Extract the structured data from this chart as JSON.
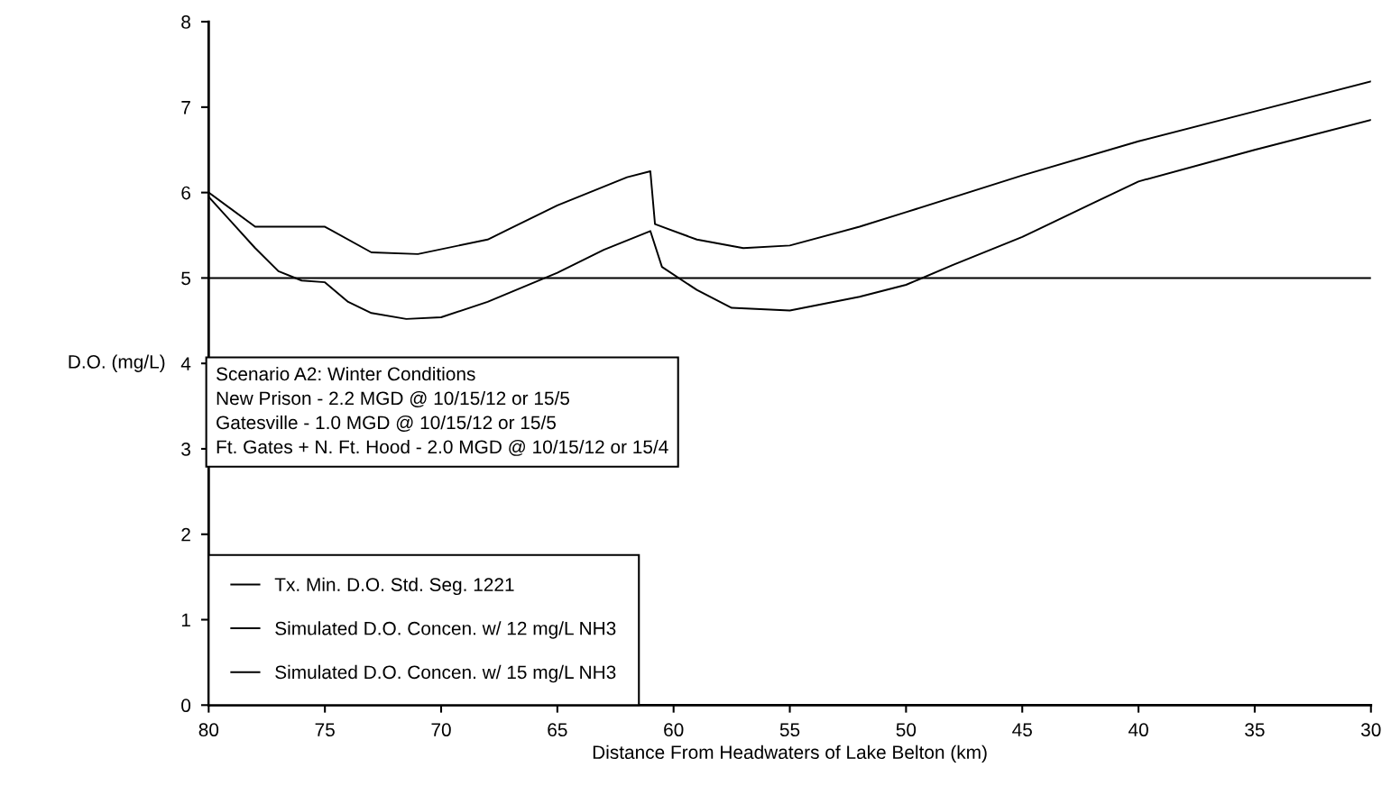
{
  "chart_data": {
    "type": "line",
    "xlabel": "Distance From Headwaters of Lake Belton (km)",
    "ylabel": "D.O. (mg/L)",
    "xlim": [
      80,
      30
    ],
    "xticks": [
      80,
      75,
      70,
      65,
      60,
      55,
      50,
      45,
      40,
      35,
      30
    ],
    "ylim": [
      0,
      8
    ],
    "yticks": [
      0,
      1,
      2,
      3,
      4,
      5,
      6,
      7,
      8
    ],
    "grid": false,
    "legend": "bottom left",
    "marker": "none",
    "line_style": "solid",
    "annotations": [
      "Scenario A2: Winter Conditions\nNew Prison - 2.2 MGD @ 10/15/12 or 15/5\nGatesville - 1.0 MGD @ 10/15/12 or 15/5\nFt. Gates + N. Ft. Hood - 2.0 MGD @ 10/15/12 or 15/4"
    ],
    "series": [
      {
        "name": "Tx. Min. D.O. Std. Seg. 1221",
        "color": "#000000",
        "x": [
          80,
          30
        ],
        "values": [
          5,
          5
        ]
      },
      {
        "name": "Simulated D.O. Concen. w/ 12 mg/L NH3",
        "color": "#000000",
        "x": [
          80,
          78,
          75,
          73,
          71,
          68,
          65,
          62,
          61,
          60.8,
          59,
          57,
          55,
          52,
          50,
          45,
          40,
          35,
          30
        ],
        "values": [
          6.0,
          5.6,
          5.6,
          5.3,
          5.28,
          5.45,
          5.85,
          6.18,
          6.25,
          5.63,
          5.45,
          5.35,
          5.38,
          5.6,
          5.77,
          6.2,
          6.6,
          6.95,
          7.3
        ]
      },
      {
        "name": "Simulated D.O. Concen. w/ 15 mg/L NH3",
        "color": "#000000",
        "x": [
          80,
          78,
          77,
          76,
          75,
          74,
          73,
          71.5,
          70,
          68,
          65,
          63,
          61,
          60.5,
          59,
          57.5,
          55,
          52,
          50,
          48,
          45,
          42,
          40,
          35,
          30
        ],
        "values": [
          5.95,
          5.35,
          5.08,
          4.97,
          4.95,
          4.72,
          4.59,
          4.52,
          4.54,
          4.72,
          5.06,
          5.33,
          5.55,
          5.13,
          4.86,
          4.65,
          4.62,
          4.78,
          4.92,
          5.15,
          5.48,
          5.87,
          6.13,
          6.5,
          6.85
        ]
      }
    ]
  }
}
